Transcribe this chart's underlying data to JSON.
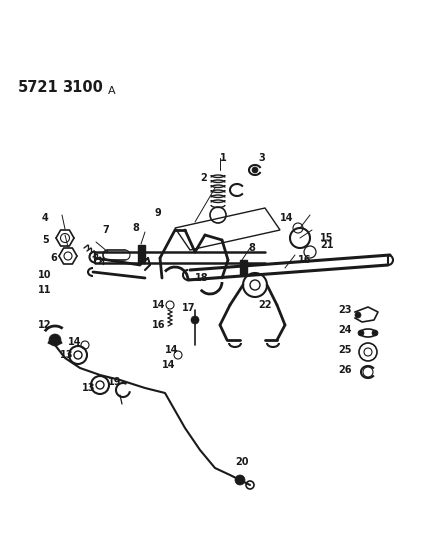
{
  "title1": "5721",
  "title2": "3100",
  "title_a": "A",
  "bg": "#ffffff",
  "lc": "#1a1a1a",
  "fig_w": 4.28,
  "fig_h": 5.33,
  "dpi": 100,
  "parts_right": [
    {
      "num": "23",
      "y": 3.0
    },
    {
      "num": "24",
      "y": 2.82
    },
    {
      "num": "25",
      "y": 2.65
    },
    {
      "num": "26",
      "y": 2.5
    }
  ]
}
